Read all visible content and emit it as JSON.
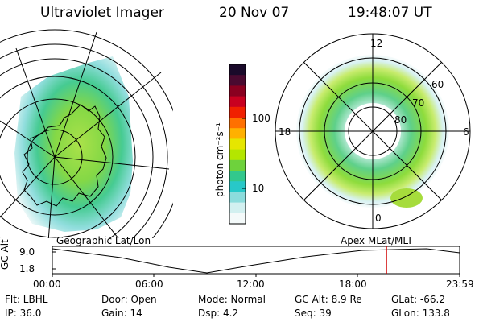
{
  "header": {
    "instrument": "Ultraviolet Imager",
    "date": "20 Nov 07",
    "time": "19:48:07 UT"
  },
  "left_panel": {
    "label": "Geographic Lat/Lon"
  },
  "right_panel": {
    "label": "Apex  MLat/MLT",
    "mlt_labels": {
      "top": "12",
      "right": "6",
      "bottom": "0",
      "left": "18"
    },
    "lat_labels": [
      "60",
      "70",
      "80"
    ]
  },
  "colorbar": {
    "unit_label": "photon cm⁻²s⁻¹",
    "ticks": [
      "100",
      "10"
    ],
    "colors": [
      "#1a0a2a",
      "#4a0a30",
      "#8a0020",
      "#c80020",
      "#f02000",
      "#ff7000",
      "#ffb000",
      "#e6e600",
      "#b4e600",
      "#6ed23c",
      "#32c88c",
      "#28c8c8",
      "#8cdcdc",
      "#d2f0f0",
      "#f4fafa"
    ]
  },
  "altitude_strip": {
    "axis_label": "GC Alt",
    "y_ticks": [
      "9.0",
      "1.8"
    ],
    "x_ticks": [
      "00:00",
      "06:00",
      "12:00",
      "18:00",
      "23:59"
    ],
    "marker_color": "#d00000"
  },
  "info": {
    "row1": [
      "Flt:  LBHL",
      "Door:  Open",
      "Mode:  Normal",
      "GC Alt:  8.9 Re",
      "GLat:  -66.2"
    ],
    "row2": [
      "IP:  36.0",
      "Gain:  14",
      "Dsp:      4.2",
      "Seq:  39",
      "GLon:  133.8"
    ]
  }
}
